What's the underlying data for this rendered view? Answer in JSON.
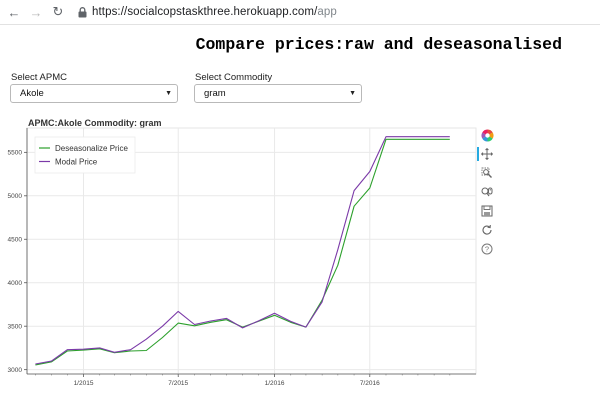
{
  "browser": {
    "url_host": "https://socialcopstaskthree.herokuapp.com/",
    "url_path": "app"
  },
  "page": {
    "title": "Compare prices:raw and deseasonalised"
  },
  "filters": {
    "apmc_label": "Select APMC",
    "apmc_value": "Akole",
    "commodity_label": "Select Commodity",
    "commodity_value": "gram"
  },
  "toolbar": {
    "tools": [
      "bokeh-logo-icon",
      "pan-icon",
      "box-zoom-icon",
      "wheel-zoom-icon",
      "save-icon",
      "reset-icon",
      "help-icon"
    ]
  },
  "chart_data": {
    "type": "line",
    "title": "APMC:Akole Commodity: gram",
    "xlabel": "",
    "ylabel": "",
    "x_ticks": [
      "1/2015",
      "7/2015",
      "1/2016",
      "7/2016"
    ],
    "y_ticks": [
      3000,
      3500,
      4000,
      4500,
      5000,
      5500
    ],
    "ylim": [
      2950,
      5780
    ],
    "xlim": [
      "2014-09-15",
      "2017-01-20"
    ],
    "legend_position": "top-left",
    "grid": true,
    "x": [
      "2014-10",
      "2014-11",
      "2014-12",
      "2015-01",
      "2015-02",
      "2015-03",
      "2015-04",
      "2015-05",
      "2015-06",
      "2015-07",
      "2015-08",
      "2015-09",
      "2015-10",
      "2015-11",
      "2015-12",
      "2016-01",
      "2016-02",
      "2016-03",
      "2016-04",
      "2016-05",
      "2016-06",
      "2016-07",
      "2016-08",
      "2016-09",
      "2016-10",
      "2016-11",
      "2016-12"
    ],
    "series": [
      {
        "name": "Deseasonalize Price",
        "color": "#2ca02c",
        "values": [
          3055,
          3090,
          3215,
          3225,
          3240,
          3195,
          3215,
          3220,
          3370,
          3535,
          3505,
          3545,
          3575,
          3490,
          3555,
          3625,
          3545,
          3490,
          3800,
          4200,
          4880,
          5090,
          5650,
          5650,
          5650,
          5650,
          5650
        ]
      },
      {
        "name": "Modal Price",
        "color": "#7b3aa8",
        "values": [
          3065,
          3100,
          3230,
          3235,
          3250,
          3200,
          3230,
          3350,
          3500,
          3670,
          3520,
          3560,
          3590,
          3480,
          3560,
          3650,
          3555,
          3490,
          3780,
          4380,
          5060,
          5280,
          5680,
          5680,
          5680,
          5680,
          5680
        ]
      }
    ]
  }
}
